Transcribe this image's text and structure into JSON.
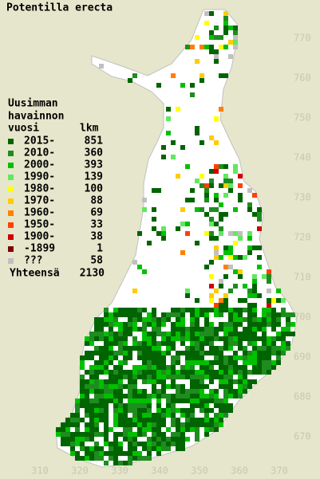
{
  "title": "Potentilla erecta",
  "legend": {
    "heading": [
      "Uusimman",
      "havainnon"
    ],
    "col_year": "vuosi",
    "col_count": "lkm",
    "rows": [
      {
        "label": "2015-",
        "count": 851,
        "color": "#006400"
      },
      {
        "label": "2010-",
        "count": 360,
        "color": "#1e8c1e"
      },
      {
        "label": "2000-",
        "count": 393,
        "color": "#00c000"
      },
      {
        "label": "1990-",
        "count": 139,
        "color": "#60e860"
      },
      {
        "label": "1980-",
        "count": 100,
        "color": "#ffff00"
      },
      {
        "label": "1970-",
        "count": 88,
        "color": "#ffcc00"
      },
      {
        "label": "1960-",
        "count": 69,
        "color": "#ff8000"
      },
      {
        "label": "1950-",
        "count": 33,
        "color": "#ff4000"
      },
      {
        "label": "1900-",
        "count": 38,
        "color": "#d00000"
      },
      {
        "label": "-1899",
        "count": 1,
        "color": "#800000"
      },
      {
        "label": "???",
        "count": 58,
        "color": "#c0c0c0"
      }
    ],
    "total_label": "Yhteensä",
    "total": 2130
  },
  "axes": {
    "y_labels": [
      770,
      760,
      750,
      740,
      730,
      720,
      710,
      700,
      690,
      680,
      670
    ],
    "x_labels": [
      310,
      320,
      330,
      340,
      350,
      360,
      370
    ]
  }
}
